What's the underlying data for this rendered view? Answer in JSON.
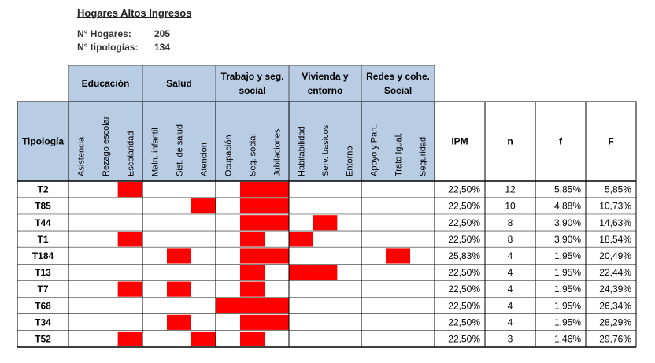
{
  "title": "Hogares Altos Ingresos",
  "meta": [
    {
      "label": "N° Hogares:",
      "value": "205"
    },
    {
      "label": "N° tipologías:",
      "value": "134"
    }
  ],
  "colors": {
    "header_fill": "#b8cce4",
    "mark": "#ff0000",
    "border": "#000000"
  },
  "table": {
    "row_header": "Tipología",
    "groups": [
      {
        "lines": [
          "Educación"
        ],
        "subs": [
          "Asistencia",
          "Rezago escolar",
          "Escolaridad"
        ]
      },
      {
        "lines": [
          "Salud"
        ],
        "subs": [
          "Maln. infantil",
          "Sist. de salud",
          "Atencion"
        ]
      },
      {
        "lines": [
          "Trabajo y seg.",
          "social"
        ],
        "subs": [
          "Ocupación",
          "Seg. social",
          "Jubilaciones"
        ]
      },
      {
        "lines": [
          "Vivienda y",
          "entorno"
        ],
        "subs": [
          "Habitabilidad",
          "Serv. basicos",
          "Entorno"
        ]
      },
      {
        "lines": [
          "Redes y cohe.",
          "Social"
        ],
        "subs": [
          "Apoyo y Part.",
          "Trato Igual.",
          "Seguridad"
        ]
      }
    ],
    "stat_headers": [
      "IPM",
      "n",
      "f",
      "F"
    ],
    "rows": [
      {
        "label": "T2",
        "marks": [
          0,
          0,
          1,
          0,
          0,
          0,
          0,
          1,
          1,
          0,
          0,
          0,
          0,
          0,
          0
        ],
        "ipm": "22,50%",
        "n": "12",
        "f": "5,85%",
        "F": "5,85%"
      },
      {
        "label": "T85",
        "marks": [
          0,
          0,
          0,
          0,
          0,
          1,
          0,
          1,
          1,
          0,
          0,
          0,
          0,
          0,
          0
        ],
        "ipm": "22,50%",
        "n": "10",
        "f": "4,88%",
        "F": "10,73%"
      },
      {
        "label": "T44",
        "marks": [
          0,
          0,
          0,
          0,
          0,
          0,
          0,
          1,
          1,
          0,
          1,
          0,
          0,
          0,
          0
        ],
        "ipm": "22,50%",
        "n": "8",
        "f": "3,90%",
        "F": "14,63%"
      },
      {
        "label": "T1",
        "marks": [
          0,
          0,
          1,
          0,
          0,
          0,
          0,
          1,
          0,
          1,
          0,
          0,
          0,
          0,
          0
        ],
        "ipm": "22,50%",
        "n": "8",
        "f": "3,90%",
        "F": "18,54%"
      },
      {
        "label": "T184",
        "marks": [
          0,
          0,
          0,
          0,
          1,
          0,
          0,
          1,
          1,
          0,
          0,
          0,
          0,
          1,
          0
        ],
        "ipm": "25,83%",
        "n": "4",
        "f": "1,95%",
        "F": "20,49%"
      },
      {
        "label": "T13",
        "marks": [
          0,
          0,
          0,
          0,
          0,
          0,
          0,
          1,
          0,
          1,
          1,
          0,
          0,
          0,
          0
        ],
        "ipm": "22,50%",
        "n": "4",
        "f": "1,95%",
        "F": "22,44%"
      },
      {
        "label": "T7",
        "marks": [
          0,
          0,
          1,
          0,
          1,
          0,
          0,
          1,
          0,
          0,
          0,
          0,
          0,
          0,
          0
        ],
        "ipm": "22,50%",
        "n": "4",
        "f": "1,95%",
        "F": "24,39%"
      },
      {
        "label": "T68",
        "marks": [
          0,
          0,
          0,
          0,
          0,
          0,
          1,
          1,
          1,
          0,
          0,
          0,
          0,
          0,
          0
        ],
        "ipm": "22,50%",
        "n": "4",
        "f": "1,95%",
        "F": "26,34%"
      },
      {
        "label": "T34",
        "marks": [
          0,
          0,
          0,
          0,
          1,
          0,
          0,
          1,
          1,
          0,
          0,
          0,
          0,
          0,
          0
        ],
        "ipm": "22,50%",
        "n": "4",
        "f": "1,95%",
        "F": "28,29%"
      },
      {
        "label": "T52",
        "marks": [
          0,
          0,
          1,
          0,
          0,
          1,
          0,
          1,
          0,
          0,
          0,
          0,
          0,
          0,
          0
        ],
        "ipm": "22,50%",
        "n": "3",
        "f": "1,46%",
        "F": "29,76%"
      }
    ]
  }
}
